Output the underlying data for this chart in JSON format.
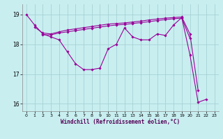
{
  "line1_x": [
    0,
    1,
    2,
    3,
    4,
    5,
    6,
    7,
    8,
    9,
    10,
    11,
    12,
    13,
    14,
    15,
    16,
    17,
    18,
    19,
    20,
    21,
    22
  ],
  "line1_y": [
    19.0,
    18.65,
    18.35,
    18.25,
    18.15,
    17.75,
    17.35,
    17.15,
    17.15,
    17.2,
    17.85,
    18.0,
    18.55,
    18.25,
    18.15,
    18.15,
    18.35,
    18.3,
    18.65,
    18.9,
    17.65,
    16.05,
    16.15
  ],
  "line2_x": [
    1,
    2,
    3,
    4,
    5,
    6,
    7,
    8,
    9,
    10,
    11,
    12,
    13,
    14,
    15,
    16,
    17,
    18,
    19,
    20,
    21
  ],
  "line2_y": [
    18.58,
    18.38,
    18.35,
    18.42,
    18.48,
    18.52,
    18.56,
    18.6,
    18.64,
    18.68,
    18.7,
    18.72,
    18.75,
    18.78,
    18.82,
    18.85,
    18.88,
    18.9,
    18.92,
    18.35,
    16.45
  ],
  "line3_x": [
    2,
    3,
    4,
    5,
    6,
    7,
    8,
    9,
    10,
    11,
    12,
    13,
    14,
    15,
    16,
    17,
    18,
    19,
    20
  ],
  "line3_y": [
    18.32,
    18.32,
    18.38,
    18.42,
    18.46,
    18.5,
    18.54,
    18.58,
    18.62,
    18.65,
    18.67,
    18.7,
    18.73,
    18.76,
    18.8,
    18.83,
    18.86,
    18.88,
    18.2
  ],
  "bg_color": "#c8eef0",
  "line_color": "#990099",
  "grid_color": "#a0ccd0",
  "xlabel": "Windchill (Refroidissement éolien,°C)",
  "xlim": [
    -0.5,
    23.5
  ],
  "ylim": [
    15.75,
    19.35
  ],
  "yticks": [
    16,
    17,
    18,
    19
  ],
  "xticks": [
    0,
    1,
    2,
    3,
    4,
    5,
    6,
    7,
    8,
    9,
    10,
    11,
    12,
    13,
    14,
    15,
    16,
    17,
    18,
    19,
    20,
    21,
    22,
    23
  ]
}
